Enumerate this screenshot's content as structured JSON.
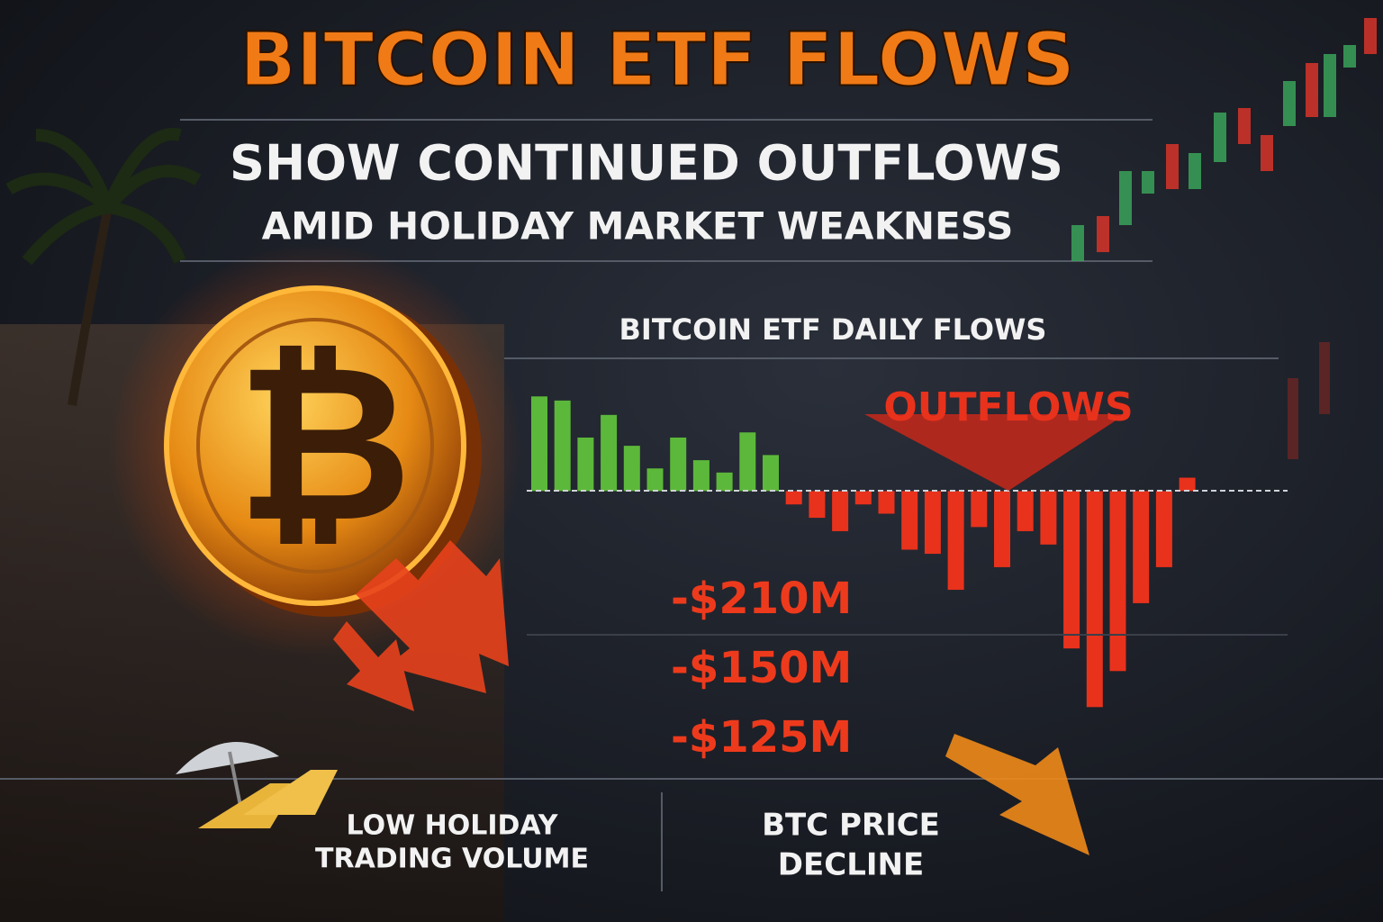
{
  "header": {
    "title": "BITCOIN ETF FLOWS",
    "subtitle": "SHOW CONTINUED OUTFLOWS",
    "tagline": "AMID HOLIDAY MARKET WEAKNESS"
  },
  "chart_data": {
    "type": "bar",
    "title": "BITCOIN ETF DAILY FLOWS",
    "values": [
      92,
      88,
      52,
      74,
      44,
      22,
      52,
      30,
      18,
      57,
      35,
      -13,
      -26,
      -39,
      -13,
      -22,
      -57,
      -61,
      -96,
      -35,
      -74,
      -39,
      -52,
      -153,
      -210,
      -175,
      -109,
      -74,
      13
    ],
    "bar_colors": [
      "#5cb83a",
      "#5cb83a",
      "#5cb83a",
      "#5cb83a",
      "#5cb83a",
      "#5cb83a",
      "#5cb83a",
      "#5cb83a",
      "#5cb83a",
      "#5cb83a",
      "#5cb83a",
      "#e8321c",
      "#e8321c",
      "#e8321c",
      "#e8321c",
      "#e8321c",
      "#e8321c",
      "#e8321c",
      "#e8321c",
      "#e8321c",
      "#e8321c",
      "#e8321c",
      "#e8321c",
      "#e8321c",
      "#e8321c",
      "#e8321c",
      "#e8321c",
      "#e8321c",
      "#e8321c"
    ],
    "ylim": [
      -250,
      150
    ],
    "annotations": {
      "outflows": "OUTFLOWS",
      "amounts": [
        "-$210M",
        "-$150M",
        "-$125M"
      ]
    }
  },
  "footer": {
    "left": [
      "LOW HOLIDAY",
      "TRADING VOLUME"
    ],
    "right": [
      "BTC PRICE",
      "DECLINE"
    ]
  }
}
